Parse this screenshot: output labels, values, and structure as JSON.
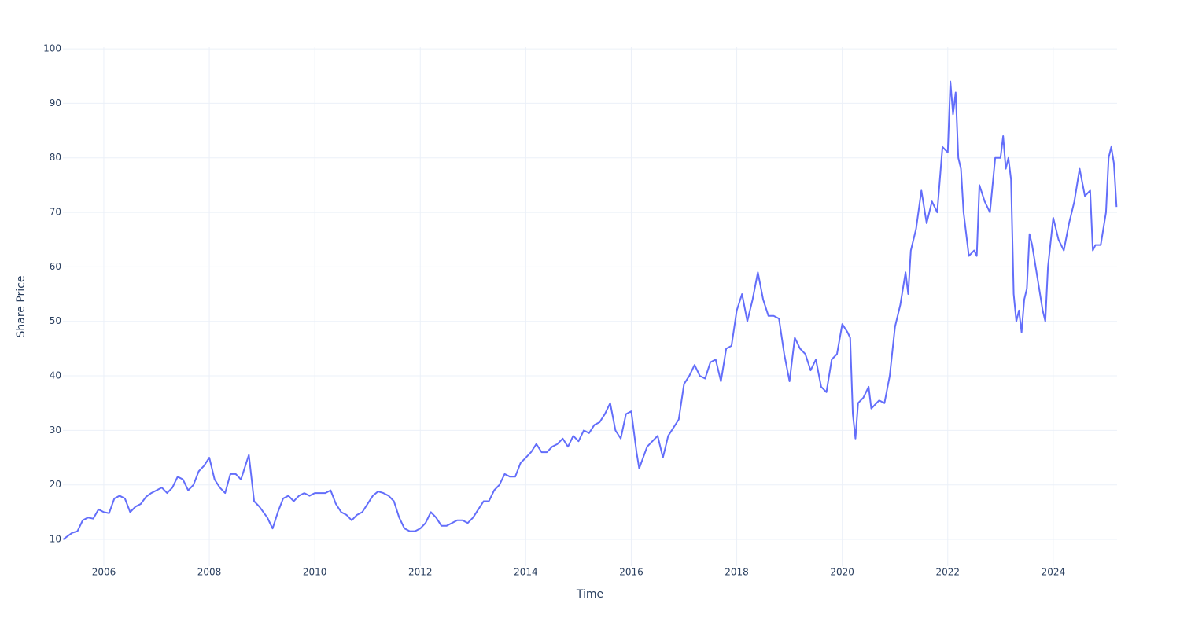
{
  "chart_data": {
    "type": "line",
    "xlabel": "Time",
    "ylabel": "Share Price",
    "color": "#636efa",
    "grid": true,
    "xlim": [
      2005.225,
      2025.21
    ],
    "ylim": [
      5.1,
      100.3
    ],
    "xticks": [
      2006,
      2008,
      2010,
      2012,
      2014,
      2016,
      2018,
      2020,
      2022,
      2024
    ],
    "yticks": [
      10,
      20,
      30,
      40,
      50,
      60,
      70,
      80,
      90,
      100
    ],
    "x": [
      2005.23,
      2005.3,
      2005.4,
      2005.5,
      2005.6,
      2005.7,
      2005.8,
      2005.9,
      2006.0,
      2006.1,
      2006.2,
      2006.3,
      2006.4,
      2006.5,
      2006.6,
      2006.7,
      2006.8,
      2006.9,
      2007.0,
      2007.1,
      2007.2,
      2007.3,
      2007.4,
      2007.5,
      2007.6,
      2007.7,
      2007.8,
      2007.9,
      2008.0,
      2008.1,
      2008.2,
      2008.3,
      2008.4,
      2008.5,
      2008.6,
      2008.7,
      2008.75,
      2008.85,
      2008.95,
      2009.1,
      2009.2,
      2009.3,
      2009.4,
      2009.5,
      2009.6,
      2009.7,
      2009.8,
      2009.9,
      2010.0,
      2010.1,
      2010.2,
      2010.3,
      2010.4,
      2010.5,
      2010.6,
      2010.7,
      2010.8,
      2010.9,
      2011.0,
      2011.1,
      2011.2,
      2011.3,
      2011.4,
      2011.5,
      2011.6,
      2011.7,
      2011.8,
      2011.9,
      2012.0,
      2012.1,
      2012.2,
      2012.3,
      2012.4,
      2012.5,
      2012.6,
      2012.7,
      2012.8,
      2012.9,
      2013.0,
      2013.1,
      2013.2,
      2013.3,
      2013.4,
      2013.5,
      2013.6,
      2013.7,
      2013.8,
      2013.9,
      2014.0,
      2014.1,
      2014.2,
      2014.3,
      2014.4,
      2014.5,
      2014.6,
      2014.7,
      2014.8,
      2014.9,
      2015.0,
      2015.1,
      2015.2,
      2015.3,
      2015.4,
      2015.5,
      2015.6,
      2015.7,
      2015.8,
      2015.9,
      2016.0,
      2016.1,
      2016.15,
      2016.3,
      2016.4,
      2016.5,
      2016.6,
      2016.7,
      2016.8,
      2016.9,
      2017.0,
      2017.1,
      2017.2,
      2017.3,
      2017.4,
      2017.5,
      2017.6,
      2017.7,
      2017.8,
      2017.9,
      2018.0,
      2018.1,
      2018.2,
      2018.3,
      2018.4,
      2018.5,
      2018.6,
      2018.7,
      2018.8,
      2018.9,
      2019.0,
      2019.1,
      2019.2,
      2019.3,
      2019.4,
      2019.5,
      2019.6,
      2019.7,
      2019.8,
      2019.9,
      2020.0,
      2020.1,
      2020.15,
      2020.2,
      2020.25,
      2020.3,
      2020.4,
      2020.5,
      2020.55,
      2020.7,
      2020.8,
      2020.9,
      2021.0,
      2021.1,
      2021.2,
      2021.25,
      2021.3,
      2021.4,
      2021.5,
      2021.6,
      2021.7,
      2021.8,
      2021.9,
      2022.0,
      2022.05,
      2022.1,
      2022.15,
      2022.2,
      2022.25,
      2022.3,
      2022.4,
      2022.5,
      2022.55,
      2022.6,
      2022.7,
      2022.8,
      2022.9,
      2023.0,
      2023.05,
      2023.1,
      2023.15,
      2023.2,
      2023.25,
      2023.3,
      2023.35,
      2023.4,
      2023.45,
      2023.5,
      2023.55,
      2023.6,
      2023.7,
      2023.8,
      2023.85,
      2023.9,
      2024.0,
      2024.1,
      2024.2,
      2024.3,
      2024.4,
      2024.5,
      2024.6,
      2024.7,
      2024.75,
      2024.8,
      2024.9,
      2025.0,
      2025.05,
      2025.1,
      2025.15,
      2025.2
    ],
    "values": [
      10,
      10.5,
      11.2,
      11.5,
      13.5,
      14,
      13.8,
      15.5,
      15,
      14.8,
      17.5,
      18,
      17.5,
      15,
      16,
      16.5,
      17.8,
      18.5,
      19,
      19.5,
      18.5,
      19.5,
      21.5,
      21,
      19,
      20,
      22.5,
      23.5,
      25,
      21,
      19.5,
      18.5,
      22,
      22,
      21,
      24,
      25.5,
      17,
      16,
      14,
      12,
      15,
      17.5,
      18,
      17,
      18,
      18.5,
      18,
      18.5,
      18.5,
      18.5,
      19,
      16.5,
      15,
      14.5,
      13.5,
      14.5,
      15,
      16.5,
      18,
      18.8,
      18.5,
      18,
      17,
      14,
      12,
      11.5,
      11.5,
      12,
      13,
      15,
      14,
      12.5,
      12.5,
      13,
      13.5,
      13.5,
      13,
      14,
      15.5,
      17,
      17,
      19,
      20,
      22,
      21.5,
      21.5,
      24,
      25,
      26,
      27.5,
      26,
      26,
      27,
      27.5,
      28.5,
      27,
      29,
      28,
      30,
      29.5,
      31,
      31.5,
      33,
      35,
      30,
      28.5,
      33,
      33.5,
      26,
      23,
      27,
      28,
      29,
      25,
      29,
      30.5,
      32,
      38.5,
      40,
      42,
      40,
      39.5,
      42.5,
      43,
      39,
      45,
      45.5,
      52,
      55,
      50,
      54,
      59,
      54,
      51,
      51,
      50.5,
      44,
      39,
      47,
      45,
      44,
      41,
      43,
      38,
      37,
      43,
      44,
      49.5,
      48,
      47,
      33,
      28.5,
      35,
      36,
      38,
      34,
      35.5,
      35,
      40,
      49,
      53,
      59,
      55,
      63,
      67,
      74,
      68,
      72,
      70,
      82,
      81,
      94,
      88,
      92,
      80,
      78,
      70,
      62,
      63,
      62,
      75,
      72,
      70,
      80,
      80,
      84,
      78,
      80,
      76,
      55,
      50,
      52,
      48,
      54,
      56,
      66,
      64,
      58,
      52,
      50,
      60,
      69,
      65,
      63,
      68,
      72,
      78,
      73,
      74,
      63,
      64,
      64,
      70,
      80,
      82,
      79,
      71
    ]
  }
}
